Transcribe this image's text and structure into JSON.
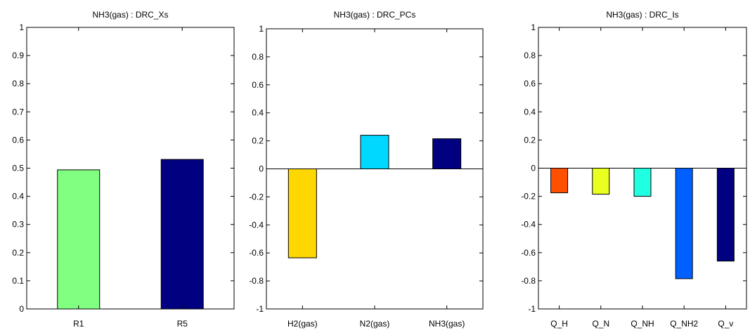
{
  "chart_data": [
    {
      "type": "bar",
      "title": "NH3(gas) : DRC_Xs",
      "xlabel": "",
      "ylabel": "",
      "ylim": [
        0,
        1
      ],
      "yticks": [
        0,
        0.1,
        0.2,
        0.3,
        0.4,
        0.5,
        0.6,
        0.7,
        0.8,
        0.9,
        1
      ],
      "ytick_labels": [
        "0",
        "0.1",
        "0.2",
        "0.3",
        "0.4",
        "0.5",
        "0.6",
        "0.7",
        "0.8",
        "0.9",
        "1"
      ],
      "categories": [
        "R1",
        "R5"
      ],
      "values": [
        0.494,
        0.531
      ],
      "colors": [
        "#80ff80",
        "#000080"
      ],
      "grid": false
    },
    {
      "type": "bar",
      "title": "NH3(gas) : DRC_PCs",
      "xlabel": "",
      "ylabel": "",
      "ylim": [
        -1,
        1
      ],
      "yticks": [
        -1,
        -0.8,
        -0.6,
        -0.4,
        -0.2,
        0,
        0.2,
        0.4,
        0.6,
        0.8,
        1
      ],
      "ytick_labels": [
        "-1",
        "-0.8",
        "-0.6",
        "-0.4",
        "-0.2",
        "0",
        "0.2",
        "0.4",
        "0.6",
        "0.8",
        "1"
      ],
      "categories": [
        "H2(gas)",
        "N2(gas)",
        "NH3(gas)"
      ],
      "values": [
        -0.635,
        0.24,
        0.215
      ],
      "colors": [
        "#ffd700",
        "#00d8ff",
        "#000080"
      ],
      "grid": false
    },
    {
      "type": "bar",
      "title": "NH3(gas) : DRC_Is",
      "xlabel": "",
      "ylabel": "",
      "ylim": [
        -1,
        1
      ],
      "yticks": [
        -1,
        -0.8,
        -0.6,
        -0.4,
        -0.2,
        0,
        0.2,
        0.4,
        0.6,
        0.8,
        1
      ],
      "ytick_labels": [
        "-1",
        "-0.8",
        "-0.6",
        "-0.4",
        "-0.2",
        "0",
        "0.2",
        "0.4",
        "0.6",
        "0.8",
        "1"
      ],
      "categories": [
        "Q_H",
        "Q_N",
        "Q_NH",
        "Q_NH2",
        "Q_v"
      ],
      "values": [
        -0.175,
        -0.185,
        -0.2,
        -0.785,
        -0.66
      ],
      "colors": [
        "#ff5000",
        "#e8ff20",
        "#20ffe0",
        "#0060ff",
        "#000080"
      ],
      "grid": false
    }
  ]
}
